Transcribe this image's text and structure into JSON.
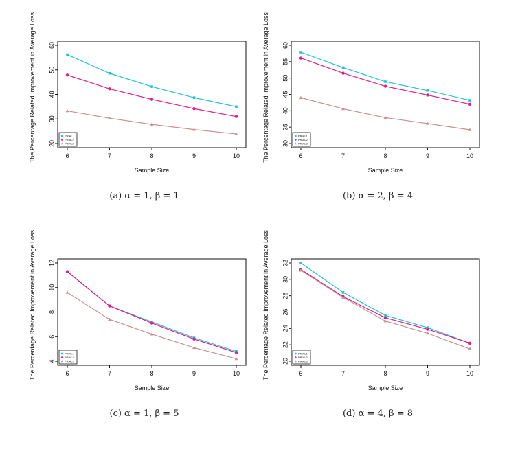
{
  "chart_data": [
    {
      "type": "line",
      "caption": "(a) α = 1, β = 1",
      "xlabel": "Sample Size",
      "ylabel": "The Percentage Related Improvement in Average Loss",
      "x": [
        6,
        7,
        8,
        9,
        10
      ],
      "xlim": [
        6,
        10
      ],
      "ylim": [
        20,
        60
      ],
      "yticks": [
        20,
        30,
        40,
        50,
        60
      ],
      "series": [
        {
          "name": "PRIAL1",
          "color": "#22c3cf",
          "marker": "square",
          "values": [
            56.2,
            48.6,
            43.2,
            38.7,
            35.0
          ]
        },
        {
          "name": "PRIAL2",
          "color": "#e01e83",
          "marker": "circle",
          "values": [
            47.9,
            42.3,
            38.0,
            34.2,
            31.0
          ]
        },
        {
          "name": "PRIAL3",
          "color": "#c89090",
          "marker": "triangle",
          "values": [
            33.3,
            30.3,
            27.8,
            25.7,
            23.9
          ]
        }
      ],
      "legend": "bottom-left"
    },
    {
      "type": "line",
      "caption": "(b) α = 2, β = 4",
      "xlabel": "Sample Size",
      "ylabel": "The Percentage Related Improvement in Average Loss",
      "x": [
        6,
        7,
        8,
        9,
        10
      ],
      "xlim": [
        6,
        10
      ],
      "ylim": [
        30,
        60
      ],
      "yticks": [
        30,
        35,
        40,
        45,
        50,
        55,
        60
      ],
      "series": [
        {
          "name": "PRIAL1",
          "color": "#22c3cf",
          "marker": "square",
          "values": [
            57.9,
            53.2,
            48.9,
            46.2,
            43.2
          ]
        },
        {
          "name": "PRIAL2",
          "color": "#e01e83",
          "marker": "circle",
          "values": [
            56.1,
            51.5,
            47.5,
            44.8,
            42.0
          ]
        },
        {
          "name": "PRIAL3",
          "color": "#c89090",
          "marker": "triangle",
          "values": [
            44.0,
            40.6,
            37.9,
            36.1,
            34.2
          ]
        }
      ],
      "legend": "bottom-left"
    },
    {
      "type": "line",
      "caption": "(c) α = 1, β = 5",
      "xlabel": "Sample Size",
      "ylabel": "The Percentage Related Improvement in Average Loss",
      "x": [
        6,
        7,
        8,
        9,
        10
      ],
      "xlim": [
        6,
        10
      ],
      "ylim": [
        4,
        12
      ],
      "yticks": [
        4,
        6,
        8,
        10,
        12
      ],
      "series": [
        {
          "name": "PRIAL1",
          "color": "#22c3cf",
          "marker": "square",
          "values": [
            11.3,
            8.5,
            7.2,
            5.9,
            4.8
          ]
        },
        {
          "name": "PRIAL2",
          "color": "#e01e83",
          "marker": "circle",
          "values": [
            11.3,
            8.5,
            7.1,
            5.8,
            4.7
          ]
        },
        {
          "name": "PRIAL3",
          "color": "#c89090",
          "marker": "triangle",
          "values": [
            9.6,
            7.4,
            6.2,
            5.1,
            4.2
          ]
        }
      ],
      "legend": "bottom-left"
    },
    {
      "type": "line",
      "caption": "(d) α = 4, β = 8",
      "xlabel": "Sample Size",
      "ylabel": "The Percentage Related Improvement in Average Loss",
      "x": [
        6,
        7,
        8,
        9,
        10
      ],
      "xlim": [
        6,
        10
      ],
      "ylim": [
        20,
        32
      ],
      "yticks": [
        20,
        22,
        24,
        26,
        28,
        30,
        32
      ],
      "series": [
        {
          "name": "PRIAL1",
          "color": "#22c3cf",
          "marker": "square",
          "values": [
            32.0,
            28.4,
            25.6,
            24.1,
            22.2
          ]
        },
        {
          "name": "PRIAL2",
          "color": "#e01e83",
          "marker": "circle",
          "values": [
            31.2,
            27.9,
            25.3,
            23.9,
            22.2
          ]
        },
        {
          "name": "PRIAL3",
          "color": "#c89090",
          "marker": "triangle",
          "values": [
            31.1,
            27.8,
            24.9,
            23.4,
            21.5
          ]
        }
      ],
      "legend": "bottom-left"
    }
  ]
}
